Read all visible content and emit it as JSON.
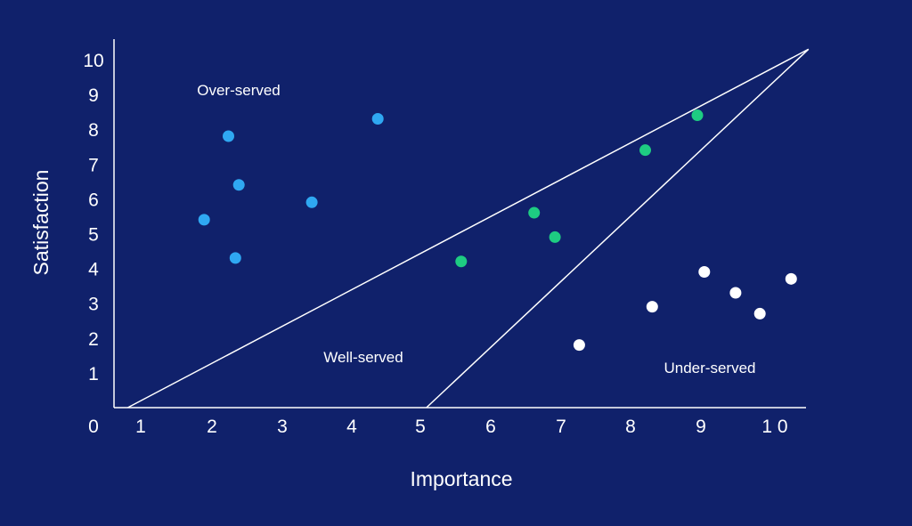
{
  "chart_data": {
    "type": "scatter",
    "title": "",
    "xlabel": "Importance",
    "ylabel": "Satisfaction",
    "xlim": [
      0,
      10
    ],
    "ylim": [
      0,
      10
    ],
    "x_ticks": [
      "0",
      "1",
      "2",
      "3",
      "4",
      "5",
      "6",
      "7",
      "8",
      "9",
      "1 0"
    ],
    "y_ticks": [
      "1",
      "2",
      "3",
      "4",
      "5",
      "6",
      "7",
      "8",
      "9",
      "10"
    ],
    "grid": false,
    "regions": [
      {
        "label": "Over-served"
      },
      {
        "label": "Well-served"
      },
      {
        "label": "Under-served"
      }
    ],
    "boundary_lines": [
      {
        "from": [
          0.3,
          0.0
        ],
        "to": [
          10.1,
          10.3
        ]
      },
      {
        "from": [
          4.6,
          0.0
        ],
        "to": [
          10.1,
          10.3
        ]
      }
    ],
    "series": [
      {
        "color": "#2fa8f2",
        "points": [
          {
            "x": 1.4,
            "y": 5.4
          },
          {
            "x": 1.75,
            "y": 7.8
          },
          {
            "x": 1.9,
            "y": 6.4
          },
          {
            "x": 1.85,
            "y": 4.3
          },
          {
            "x": 2.95,
            "y": 5.9
          },
          {
            "x": 3.9,
            "y": 8.3
          }
        ]
      },
      {
        "color": "#1ecc82",
        "points": [
          {
            "x": 5.1,
            "y": 4.2
          },
          {
            "x": 6.15,
            "y": 5.6
          },
          {
            "x": 6.45,
            "y": 4.9
          },
          {
            "x": 7.75,
            "y": 7.4
          },
          {
            "x": 8.5,
            "y": 8.4
          }
        ]
      },
      {
        "color": "#ffffff",
        "points": [
          {
            "x": 6.8,
            "y": 1.8
          },
          {
            "x": 7.85,
            "y": 2.9
          },
          {
            "x": 8.6,
            "y": 3.9
          },
          {
            "x": 9.05,
            "y": 3.3
          },
          {
            "x": 9.4,
            "y": 2.7
          },
          {
            "x": 9.85,
            "y": 3.7
          }
        ]
      }
    ]
  }
}
